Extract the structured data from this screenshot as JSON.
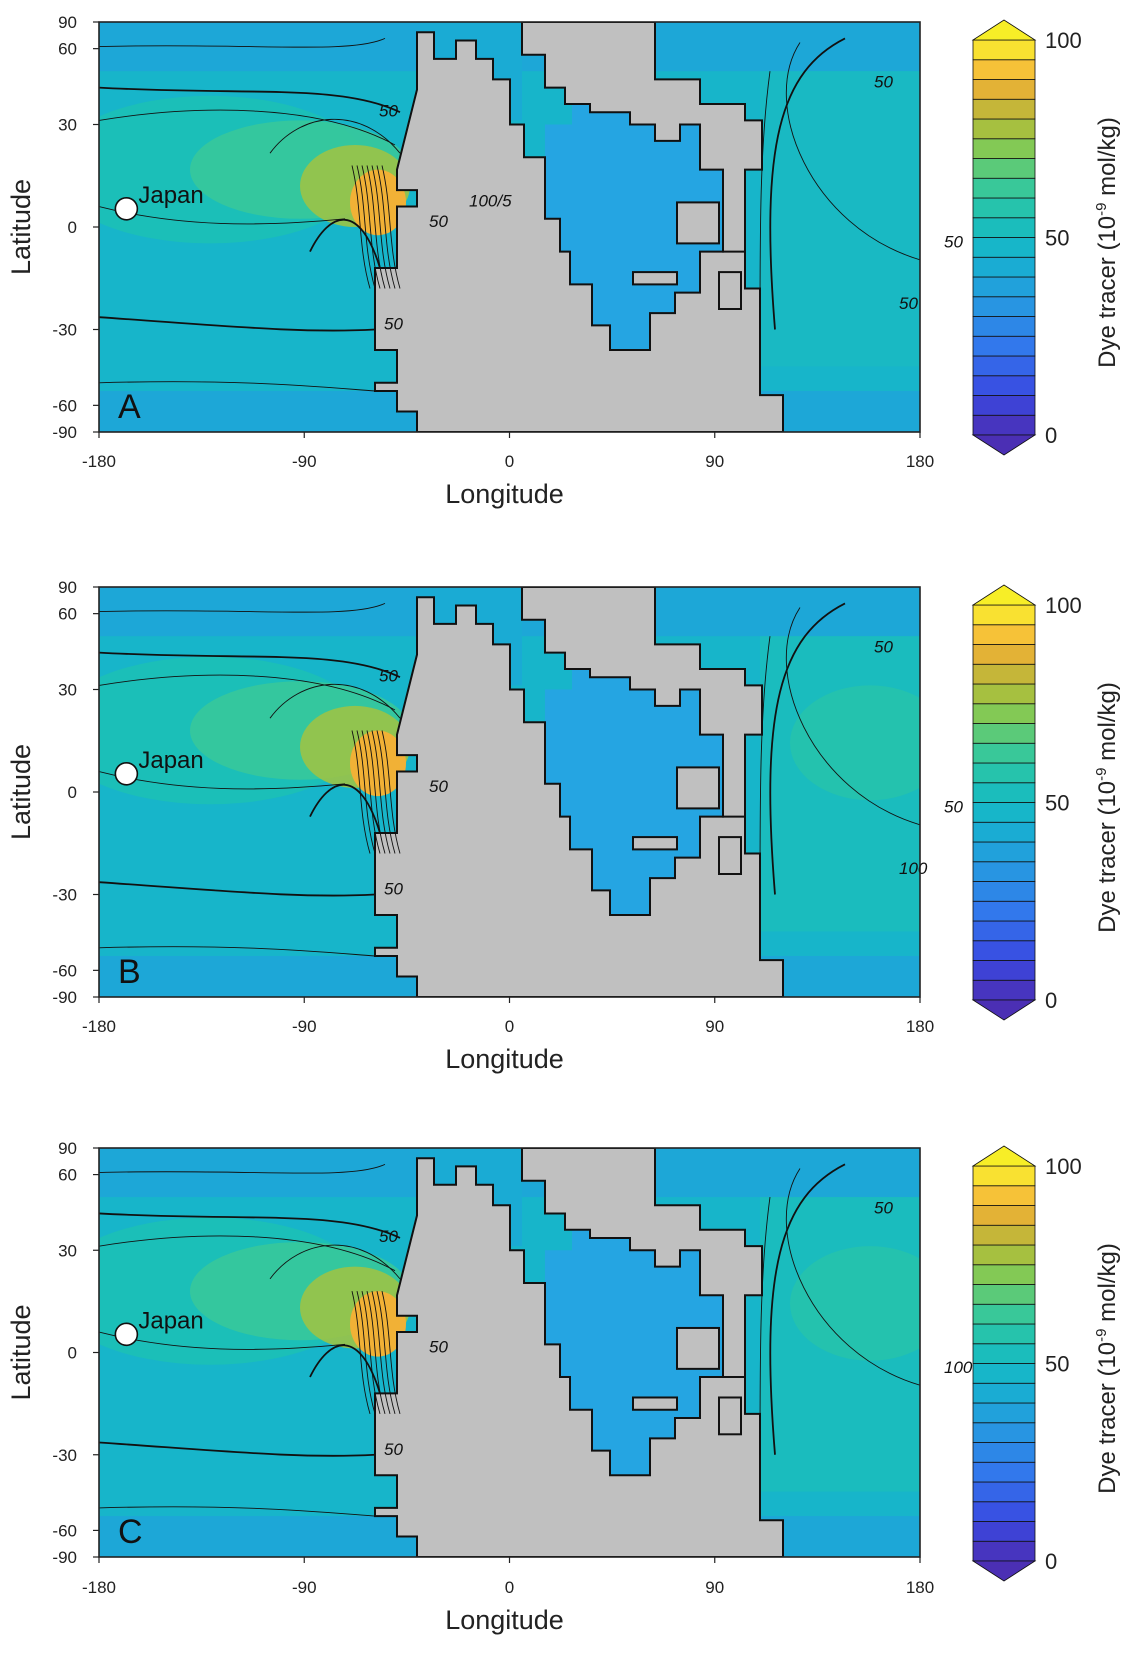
{
  "chart_data": [
    {
      "type": "heatmap",
      "panel_label": "A",
      "xlabel": "Longitude",
      "ylabel": "Latitude",
      "xlim": [
        -180,
        180
      ],
      "ylim": [
        -90,
        90
      ],
      "xticks": [
        "-180",
        "-90",
        "0",
        "90",
        "180"
      ],
      "yticks": [
        "90",
        "60",
        "30",
        "0",
        "-30",
        "-60",
        "-90"
      ],
      "marker": {
        "label": "Japan",
        "lon": -168,
        "lat": 8
      },
      "contour_labels": [
        "50",
        "50",
        "50",
        "50",
        "50",
        "50",
        "100/5"
      ],
      "colorbar": {
        "title": "Dye tracer (10",
        "exponent": "-9",
        "title_suffix": " mol/kg)",
        "ticks": [
          "100",
          "50",
          "0"
        ],
        "min": 0,
        "max": 100
      }
    },
    {
      "type": "heatmap",
      "panel_label": "B",
      "xlabel": "Longitude",
      "ylabel": "Latitude",
      "xlim": [
        -180,
        180
      ],
      "ylim": [
        -90,
        90
      ],
      "xticks": [
        "-180",
        "-90",
        "0",
        "90",
        "180"
      ],
      "yticks": [
        "90",
        "60",
        "30",
        "0",
        "-30",
        "-60",
        "-90"
      ],
      "marker": {
        "label": "Japan",
        "lon": -168,
        "lat": 8
      },
      "contour_labels": [
        "50",
        "50",
        "50",
        "50",
        "50",
        "100"
      ],
      "colorbar": {
        "title": "Dye tracer (10",
        "exponent": "-9",
        "title_suffix": " mol/kg)",
        "ticks": [
          "100",
          "50",
          "0"
        ],
        "min": 0,
        "max": 100
      }
    },
    {
      "type": "heatmap",
      "panel_label": "C",
      "xlabel": "Longitude",
      "ylabel": "Latitude",
      "xlim": [
        -180,
        180
      ],
      "ylim": [
        -90,
        90
      ],
      "xticks": [
        "-180",
        "-90",
        "0",
        "90",
        "180"
      ],
      "yticks": [
        "90",
        "60",
        "30",
        "0",
        "-30",
        "-60",
        "-90"
      ],
      "marker": {
        "label": "Japan",
        "lon": -168,
        "lat": 8
      },
      "contour_labels": [
        "50",
        "50",
        "50",
        "50",
        "100"
      ],
      "colorbar": {
        "title": "Dye tracer (10",
        "exponent": "-9",
        "title_suffix": " mol/kg)",
        "ticks": [
          "100",
          "50",
          "0"
        ],
        "min": 0,
        "max": 100
      }
    }
  ],
  "colors": {
    "land": "#c0c0c0",
    "ocean_base": "#1fb4c8",
    "ocean_deep_blue": "#25a5e2",
    "marker_fill": "#ffffff"
  }
}
